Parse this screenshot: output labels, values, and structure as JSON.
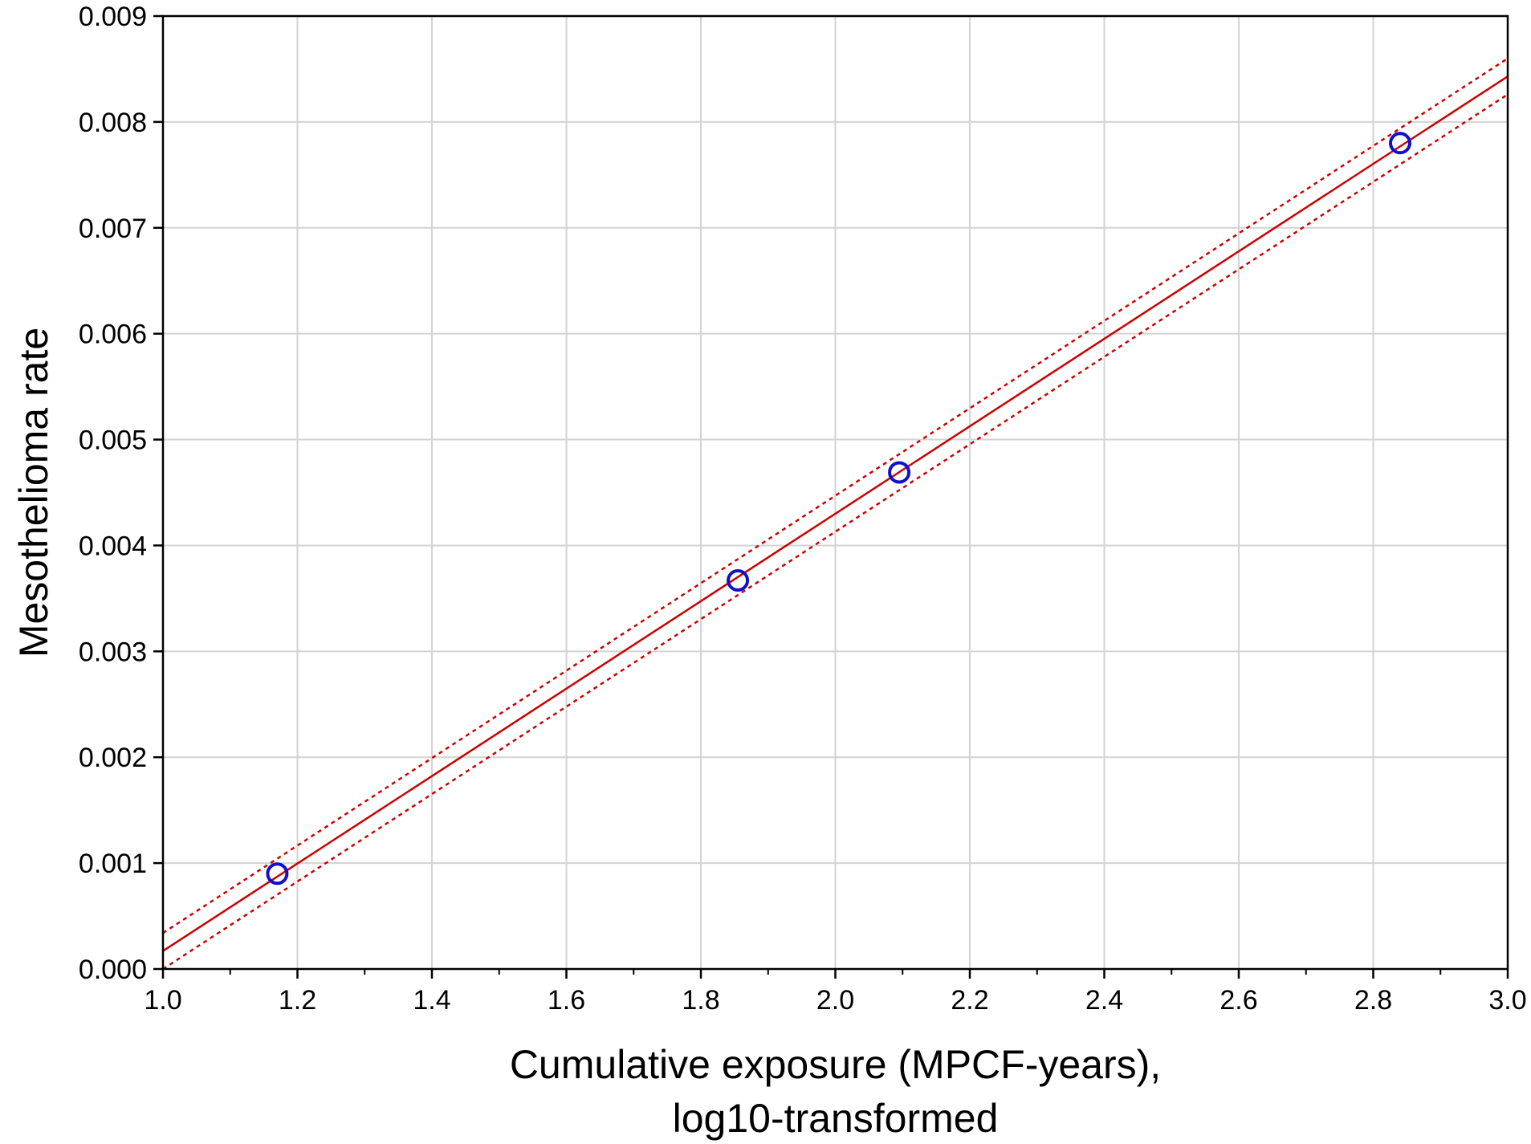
{
  "chart_data": {
    "type": "scatter",
    "xlabel_lines": [
      "Cumulative exposure (MPCF-years),",
      "log10-transformed"
    ],
    "ylabel": "Mesothelioma rate",
    "xlim": [
      1.0,
      3.0
    ],
    "ylim": [
      0.0,
      0.009
    ],
    "x_ticks": [
      "1.0",
      "1.2",
      "1.4",
      "1.6",
      "1.8",
      "2.0",
      "2.2",
      "2.4",
      "2.6",
      "2.8",
      "3.0"
    ],
    "y_ticks": [
      "0.000",
      "0.001",
      "0.002",
      "0.003",
      "0.004",
      "0.005",
      "0.006",
      "0.007",
      "0.008",
      "0.009"
    ],
    "grid": true,
    "series": [
      {
        "kind": "points",
        "marker": "open-circle",
        "color": "#1010cc",
        "x": [
          1.17,
          1.855,
          2.095,
          2.84
        ],
        "y": [
          0.0009,
          0.00367,
          0.00469,
          0.0078
        ]
      },
      {
        "kind": "fit-line",
        "style": "solid",
        "color": "#cc0000",
        "x": [
          1.0,
          3.0
        ],
        "y": [
          0.00017,
          0.00843
        ]
      },
      {
        "kind": "confidence-band-upper",
        "style": "dotted",
        "color": "#cc0000",
        "x": [
          1.0,
          3.0
        ],
        "y": [
          0.00034,
          0.0086
        ]
      },
      {
        "kind": "confidence-band-lower",
        "style": "dotted",
        "color": "#cc0000",
        "x": [
          1.0,
          3.0
        ],
        "y": [
          0.0,
          0.00826
        ]
      }
    ]
  }
}
